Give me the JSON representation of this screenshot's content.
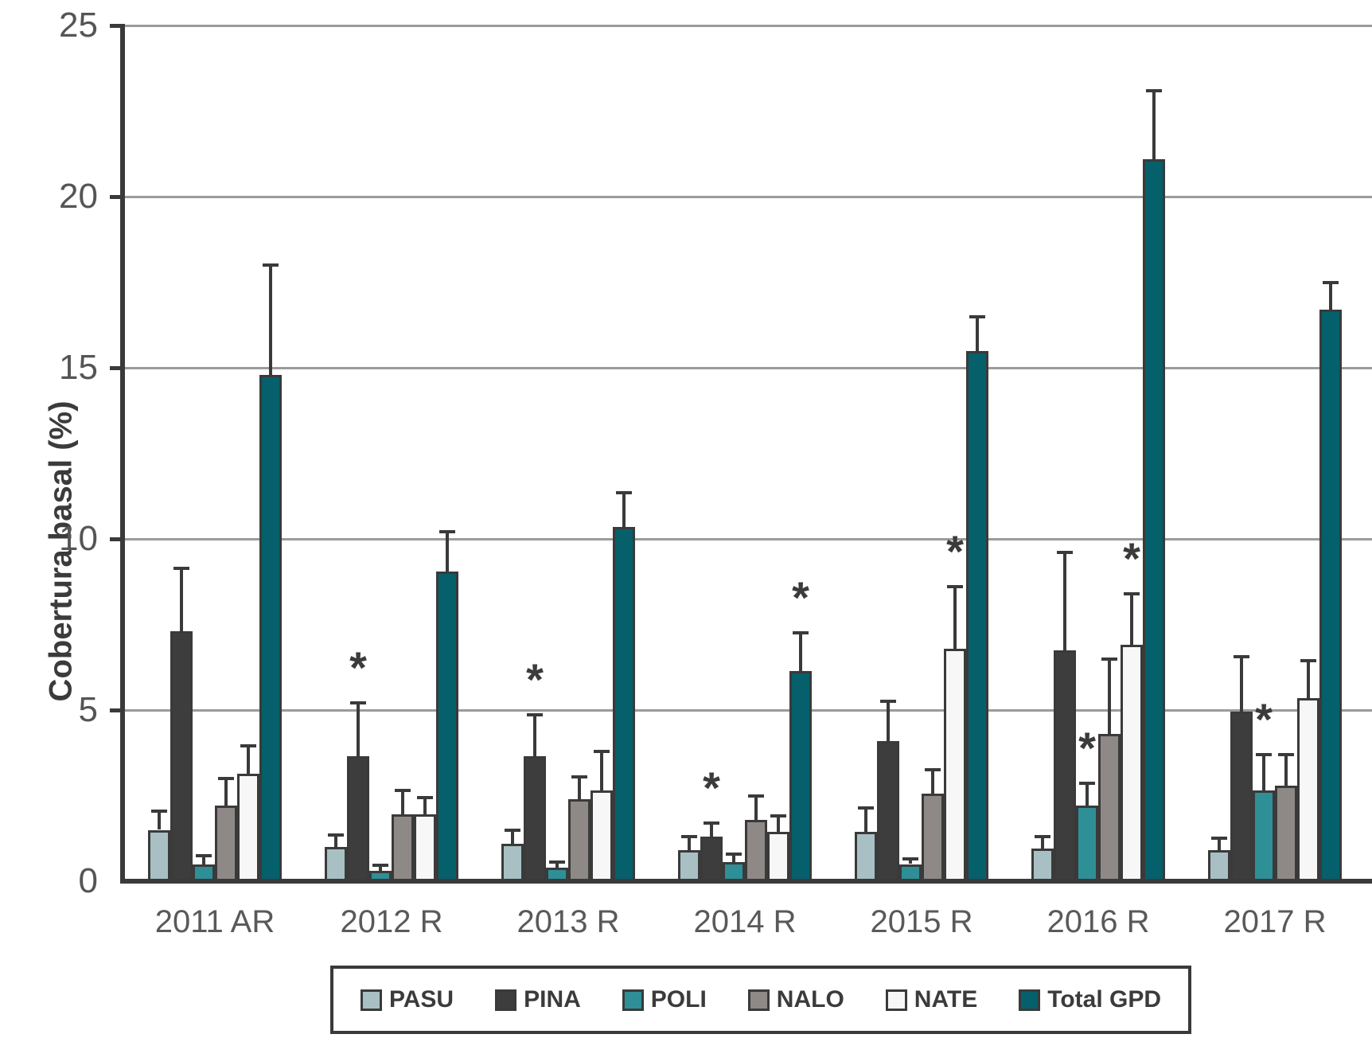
{
  "figure": {
    "y_axis_title": "Cobertura basal (%)"
  },
  "chart_data": {
    "type": "bar",
    "title": "",
    "xlabel": "",
    "ylabel": "Cobertura basal (%)",
    "ylim": [
      0,
      25
    ],
    "y_ticks": [
      0,
      5,
      10,
      15,
      20,
      25
    ],
    "grid": "horizontal",
    "legend_position": "bottom",
    "error_bars": "plus_direction_only",
    "categories": [
      "2011 AR",
      "2012 R",
      "2013 R",
      "2014 R",
      "2015 R",
      "2016 R",
      "2017 R"
    ],
    "series": [
      {
        "name": "PASU",
        "color": "#a8c0c3",
        "values": [
          1.5,
          1.0,
          1.1,
          0.9,
          1.45,
          0.95,
          0.9
        ],
        "errors_plus": [
          0.55,
          0.35,
          0.4,
          0.4,
          0.7,
          0.35,
          0.35
        ]
      },
      {
        "name": "PINA",
        "color": "#3d3d3d",
        "values": [
          7.3,
          3.65,
          3.65,
          1.3,
          4.1,
          6.75,
          4.95
        ],
        "errors_plus": [
          1.85,
          1.55,
          1.2,
          0.4,
          1.15,
          2.85,
          1.6
        ]
      },
      {
        "name": "POLI",
        "color": "#2f8f97",
        "values": [
          0.5,
          0.3,
          0.4,
          0.55,
          0.5,
          2.2,
          2.65
        ],
        "errors_plus": [
          0.25,
          0.17,
          0.15,
          0.25,
          0.15,
          0.65,
          1.05
        ]
      },
      {
        "name": "NALO",
        "color": "#8e8987",
        "values": [
          2.2,
          1.95,
          2.4,
          1.8,
          2.55,
          4.3,
          2.8
        ],
        "errors_plus": [
          0.8,
          0.7,
          0.65,
          0.7,
          0.7,
          2.2,
          0.9
        ]
      },
      {
        "name": "NATE",
        "color": "#f7f7f7",
        "values": [
          3.15,
          1.95,
          2.65,
          1.45,
          6.8,
          6.9,
          5.35
        ],
        "errors_plus": [
          0.8,
          0.5,
          1.15,
          0.45,
          1.8,
          1.5,
          1.1
        ]
      },
      {
        "name": "Total GPD",
        "color": "#05606b",
        "values": [
          14.8,
          9.05,
          10.35,
          6.15,
          15.5,
          21.1,
          16.7
        ],
        "errors_plus": [
          3.2,
          1.15,
          1.0,
          1.1,
          1.0,
          2.0,
          0.8
        ]
      }
    ],
    "significance_markers": [
      {
        "category": "2012 R",
        "series": "PINA",
        "symbol": "*"
      },
      {
        "category": "2013 R",
        "series": "PINA",
        "symbol": "*"
      },
      {
        "category": "2014 R",
        "series": "PINA",
        "symbol": "*"
      },
      {
        "category": "2014 R",
        "series": "Total GPD",
        "symbol": "*"
      },
      {
        "category": "2015 R",
        "series": "NATE",
        "symbol": "*"
      },
      {
        "category": "2016 R",
        "series": "POLI",
        "symbol": "*"
      },
      {
        "category": "2016 R",
        "series": "NATE",
        "symbol": "*"
      },
      {
        "category": "2017 R",
        "series": "POLI",
        "symbol": "*"
      }
    ],
    "colors": {
      "axis": "#3a3a3a",
      "gridline": "#9b9b9b",
      "tick_label": "#555555",
      "category_label": "#595959",
      "error_bar": "#3a3a3a",
      "significance": "#3b3b3b",
      "background": "#ffffff"
    }
  }
}
